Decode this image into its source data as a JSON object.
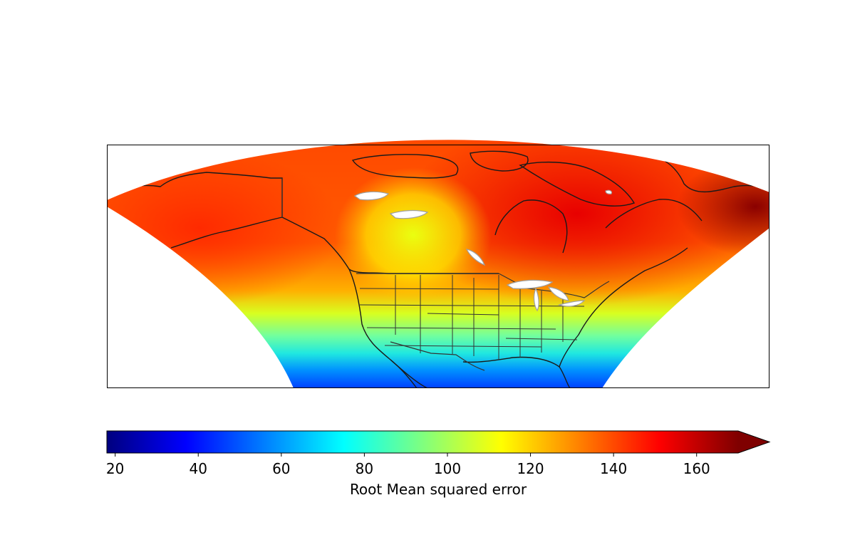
{
  "colorbar": {
    "label": "Root Mean squared error",
    "min": 18,
    "max": 170,
    "extend": "max",
    "ticks": [
      "20",
      "40",
      "60",
      "80",
      "100",
      "120",
      "140",
      "160"
    ],
    "colormap": "jet",
    "stops": [
      "#00007f",
      "#0000ff",
      "#007fff",
      "#00ffff",
      "#7fff7f",
      "#ffff00",
      "#ff7f00",
      "#ff0000",
      "#7f0000"
    ]
  },
  "map": {
    "region": "North America",
    "projection": "conic",
    "features": [
      "coastlines",
      "country-borders",
      "us-state-borders",
      "lakes"
    ],
    "field_colors": {
      "south": "#0010ff",
      "southern-us": "#30e8d0",
      "central-us": "#90ff70",
      "prairies": "#e8ff10",
      "alaska": "#ff3000",
      "hudson-bay": "#ff2000",
      "arctic": "#ff4000",
      "greenland": "#800000",
      "lakes": "#ffffff",
      "lake-outline": "#a0a0a0"
    }
  }
}
